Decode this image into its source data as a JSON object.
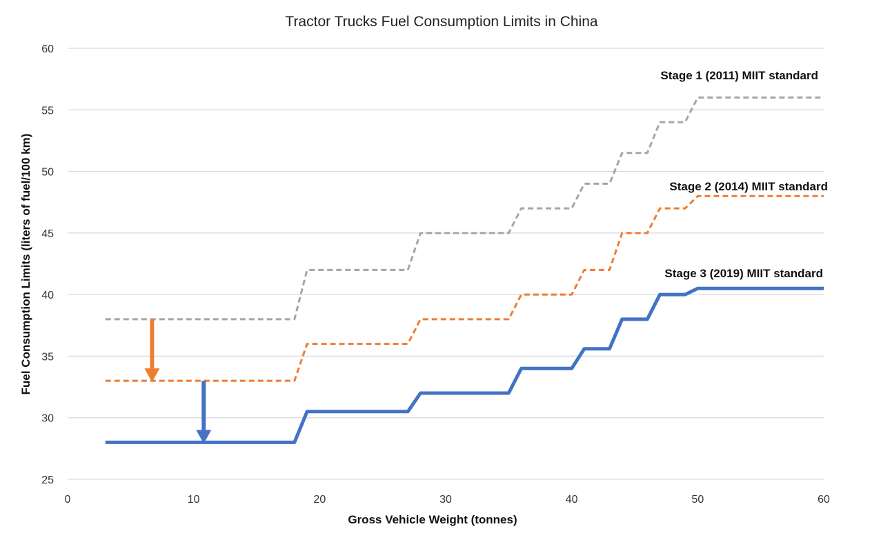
{
  "chart_data": {
    "type": "line",
    "title": "Tractor Trucks Fuel Consumption Limits in China",
    "xlabel": "Gross Vehicle Weight (tonnes)",
    "ylabel": "Fuel Consumption Limits (liters of fuel/100 km)",
    "xlim": [
      0,
      60
    ],
    "ylim": [
      25,
      60
    ],
    "xticks": [
      0,
      10,
      20,
      30,
      40,
      50,
      60
    ],
    "yticks": [
      25,
      30,
      35,
      40,
      45,
      50,
      55,
      60
    ],
    "grid": "horizontal",
    "legend": "none",
    "series": [
      {
        "name": "Stage 1 (2011) MIIT standard",
        "color": "#a5a5a5",
        "style": "dashed",
        "points": [
          [
            3,
            38
          ],
          [
            18,
            38
          ],
          [
            19,
            42
          ],
          [
            27,
            42
          ],
          [
            28,
            45
          ],
          [
            35,
            45
          ],
          [
            36,
            47
          ],
          [
            40,
            47
          ],
          [
            41,
            49
          ],
          [
            43,
            49
          ],
          [
            44,
            51.5
          ],
          [
            46,
            51.5
          ],
          [
            47,
            54
          ],
          [
            49,
            54
          ],
          [
            50,
            56
          ],
          [
            60,
            56
          ]
        ]
      },
      {
        "name": "Stage 2 (2014) MIIT standard",
        "color": "#ed7d31",
        "style": "dashed",
        "points": [
          [
            3,
            33
          ],
          [
            18,
            33
          ],
          [
            19,
            36
          ],
          [
            27,
            36
          ],
          [
            28,
            38
          ],
          [
            35,
            38
          ],
          [
            36,
            40
          ],
          [
            40,
            40
          ],
          [
            41,
            42
          ],
          [
            43,
            42
          ],
          [
            44,
            45
          ],
          [
            46,
            45
          ],
          [
            47,
            47
          ],
          [
            49,
            47
          ],
          [
            50,
            48
          ],
          [
            60,
            48
          ]
        ]
      },
      {
        "name": "Stage 3 (2019) MIIT standard",
        "color": "#4472c4",
        "style": "solid",
        "points": [
          [
            3,
            28
          ],
          [
            18,
            28
          ],
          [
            19,
            30.5
          ],
          [
            27,
            30.5
          ],
          [
            28,
            32
          ],
          [
            35,
            32
          ],
          [
            36,
            34
          ],
          [
            40,
            34
          ],
          [
            41,
            35.6
          ],
          [
            43,
            35.6
          ],
          [
            44,
            38
          ],
          [
            46,
            38
          ],
          [
            47,
            40
          ],
          [
            49,
            40
          ],
          [
            50,
            40.5
          ],
          [
            60,
            40.5
          ]
        ]
      }
    ],
    "annotations": [
      {
        "type": "arrow",
        "color": "#ed7d31",
        "x": 6.7,
        "from_y": 38,
        "to_y": 33
      },
      {
        "type": "arrow",
        "color": "#4472c4",
        "x": 10.8,
        "from_y": 33,
        "to_y": 28
      }
    ]
  }
}
